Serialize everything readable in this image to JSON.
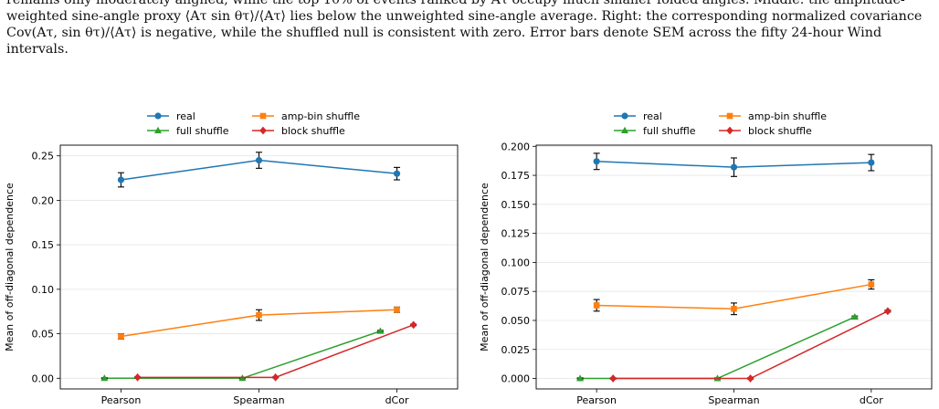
{
  "caption": {
    "lines": [
      "remains only moderately aligned, while the top 10% of events ranked by Aτ occupy much smaller folded angles. Middle: the amplitude-",
      "weighted sine-angle proxy ⟨Aτ sin θτ⟩/⟨Aτ⟩ lies below the unweighted sine-angle average. Right: the corresponding normalized covariance",
      "Cov(Aτ, sin θτ)/⟨Aτ⟩ is negative, while the shuffled null is consistent with zero. Error bars denote SEM across the fifty 24-hour Wind",
      "intervals."
    ]
  },
  "colors": {
    "real": "#1f77b4",
    "amp_bin": "#ff7f0e",
    "full": "#2ca02c",
    "block": "#d62728"
  },
  "chart_data": [
    {
      "type": "line",
      "categories": [
        "Pearson",
        "Spearman",
        "dCor"
      ],
      "ylabel": "Mean of off-diagonal dependence",
      "ylim": [
        -0.012,
        0.262
      ],
      "yticks": [
        0.0,
        0.05,
        0.1,
        0.15,
        0.2,
        0.25
      ],
      "ytick_labels": [
        "0.00",
        "0.05",
        "0.10",
        "0.15",
        "0.20",
        "0.25"
      ],
      "legend_position": "top",
      "series": [
        {
          "name": "real",
          "marker": "circle",
          "offset": 0,
          "values": [
            0.223,
            0.245,
            0.23
          ],
          "err": [
            0.008,
            0.009,
            0.007
          ]
        },
        {
          "name": "amp-bin shuffle",
          "marker": "square",
          "offset": 0,
          "values": [
            0.047,
            0.071,
            0.077
          ],
          "err": [
            0.003,
            0.006,
            0.003
          ]
        },
        {
          "name": "full shuffle",
          "marker": "triangle",
          "offset": -0.12,
          "values": [
            0.0,
            0.0,
            0.053
          ],
          "err": [
            0.0005,
            0.0005,
            0.0008
          ]
        },
        {
          "name": "block shuffle",
          "marker": "diamond",
          "offset": 0.12,
          "values": [
            0.001,
            0.001,
            0.06
          ],
          "err": [
            0.0005,
            0.0005,
            0.0008
          ]
        }
      ]
    },
    {
      "type": "line",
      "categories": [
        "Pearson",
        "Spearman",
        "dCor"
      ],
      "ylabel": "Mean of off-diagonal dependence",
      "ylim": [
        -0.009,
        0.201
      ],
      "yticks": [
        0.0,
        0.025,
        0.05,
        0.075,
        0.1,
        0.125,
        0.15,
        0.175,
        0.2
      ],
      "ytick_labels": [
        "0.000",
        "0.025",
        "0.050",
        "0.075",
        "0.100",
        "0.125",
        "0.150",
        "0.175",
        "0.200"
      ],
      "legend_position": "top-right",
      "series": [
        {
          "name": "real",
          "marker": "circle",
          "offset": 0,
          "values": [
            0.187,
            0.182,
            0.186
          ],
          "err": [
            0.007,
            0.008,
            0.007
          ]
        },
        {
          "name": "amp-bin shuffle",
          "marker": "square",
          "offset": 0,
          "values": [
            0.063,
            0.06,
            0.081
          ],
          "err": [
            0.005,
            0.005,
            0.004
          ]
        },
        {
          "name": "full shuffle",
          "marker": "triangle",
          "offset": -0.12,
          "values": [
            0.0,
            0.0,
            0.053
          ],
          "err": [
            0.0005,
            0.0005,
            0.0008
          ]
        },
        {
          "name": "block shuffle",
          "marker": "diamond",
          "offset": 0.12,
          "values": [
            0.0,
            0.0,
            0.058
          ],
          "err": [
            0.0005,
            0.0005,
            0.0008
          ]
        }
      ]
    }
  ]
}
